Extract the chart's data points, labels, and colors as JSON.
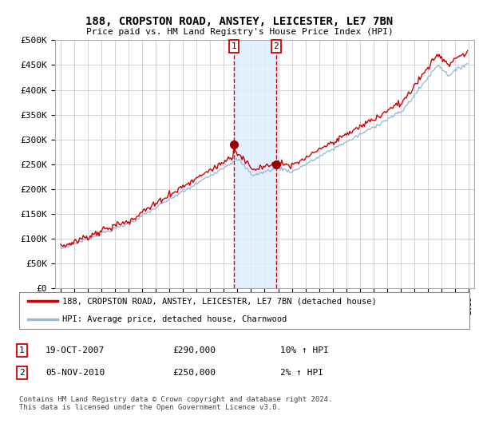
{
  "title": "188, CROPSTON ROAD, ANSTEY, LEICESTER, LE7 7BN",
  "subtitle": "Price paid vs. HM Land Registry's House Price Index (HPI)",
  "ylabel_ticks": [
    "£0",
    "£50K",
    "£100K",
    "£150K",
    "£200K",
    "£250K",
    "£300K",
    "£350K",
    "£400K",
    "£450K",
    "£500K"
  ],
  "ytick_values": [
    0,
    50000,
    100000,
    150000,
    200000,
    250000,
    300000,
    350000,
    400000,
    450000,
    500000
  ],
  "ylim": [
    0,
    500000
  ],
  "legend_line1": "188, CROPSTON ROAD, ANSTEY, LEICESTER, LE7 7BN (detached house)",
  "legend_line2": "HPI: Average price, detached house, Charnwood",
  "transaction1_label": "1",
  "transaction1_date": "19-OCT-2007",
  "transaction1_price": "£290,000",
  "transaction1_hpi": "10% ↑ HPI",
  "transaction2_label": "2",
  "transaction2_date": "05-NOV-2010",
  "transaction2_price": "£250,000",
  "transaction2_hpi": "2% ↑ HPI",
  "footnote": "Contains HM Land Registry data © Crown copyright and database right 2024.\nThis data is licensed under the Open Government Licence v3.0.",
  "line_color_property": "#cc0000",
  "line_color_hpi": "#99bbdd",
  "background_color": "#ffffff",
  "grid_color": "#cccccc",
  "vline_color": "#cc0000",
  "vregion_color": "#ddeeff",
  "marker_color": "#990000"
}
